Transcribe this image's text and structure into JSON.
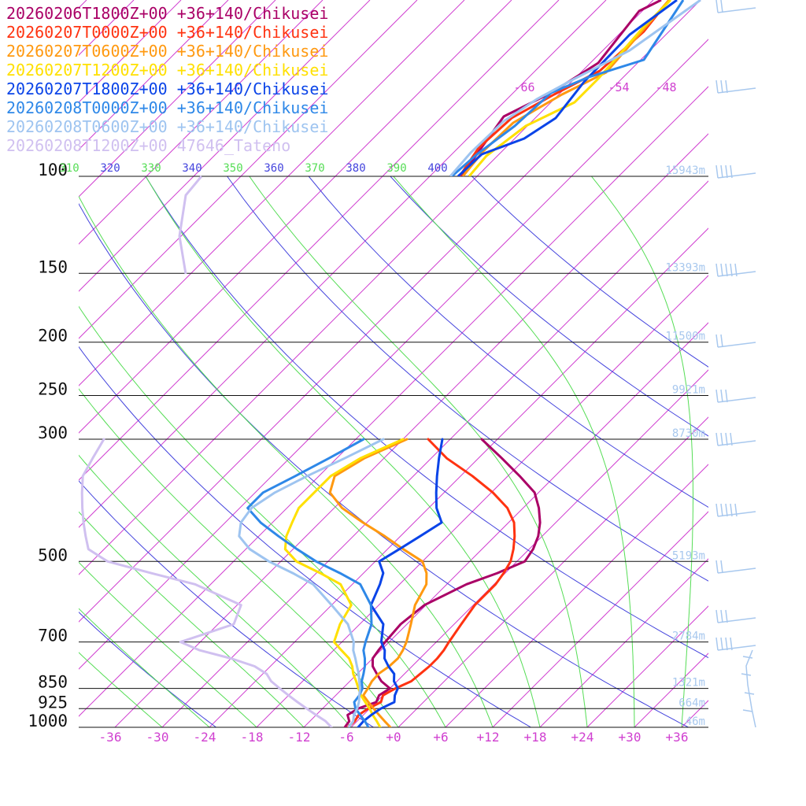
{
  "chart_data": {
    "type": "line",
    "title": "",
    "xlabel": "",
    "ylabel": "",
    "pressure_levels_hpa": [
      100,
      150,
      200,
      250,
      300,
      500,
      700,
      850,
      925,
      1000
    ],
    "pressure_labels": [
      "100",
      "150",
      "200",
      "250",
      "300",
      "500",
      "700",
      "850",
      "925",
      "1000"
    ],
    "temperature_ticks": [
      "-36",
      "-30",
      "-24",
      "-18",
      "-12",
      "-6",
      "+0",
      "+6",
      "+12",
      "+18",
      "+24",
      "+30",
      "+36"
    ],
    "theta_labels": [
      {
        "text": "310",
        "color": "#55dd55"
      },
      {
        "text": "320",
        "color": "#4444dd"
      },
      {
        "text": "330",
        "color": "#55dd55"
      },
      {
        "text": "340",
        "color": "#4444dd"
      },
      {
        "text": "350",
        "color": "#55dd55"
      },
      {
        "text": "360",
        "color": "#4444dd"
      },
      {
        "text": "370",
        "color": "#55dd55"
      },
      {
        "text": "380",
        "color": "#4444dd"
      },
      {
        "text": "390",
        "color": "#55dd55"
      },
      {
        "text": "400",
        "color": "#4444dd"
      }
    ],
    "top_isotherm_labels": [
      "-66",
      "-54",
      "-48"
    ],
    "height_labels": [
      {
        "p": 100,
        "text": "15943m"
      },
      {
        "p": 150,
        "text": "13393m"
      },
      {
        "p": 200,
        "text": "11500m"
      },
      {
        "p": 250,
        "text": "9921m"
      },
      {
        "p": 300,
        "text": "8730m"
      },
      {
        "p": 500,
        "text": "5193m"
      },
      {
        "p": 700,
        "text": "2784m"
      },
      {
        "p": 850,
        "text": "1321m"
      },
      {
        "p": 925,
        "text": "664m"
      },
      {
        "p": 1000,
        "text": "46m"
      }
    ],
    "colors": {
      "isotherm": "#d040d0",
      "isobar": "#111111",
      "dry_adiabat": "#4444dd",
      "moist_adiabat": "#55dd55",
      "wind_barb": "#a8c8ee"
    },
    "series": [
      {
        "name": "20260206T1800Z+00 +36+140/Chikusei",
        "color": "#aa0066",
        "points": [
          [
            1000,
            -6.8
          ],
          [
            975,
            -7.0
          ],
          [
            950,
            -8.0
          ],
          [
            925,
            -7.5
          ],
          [
            900,
            -6.0
          ],
          [
            875,
            -6.5
          ],
          [
            850,
            -6.0
          ],
          [
            825,
            -8.0
          ],
          [
            800,
            -9.5
          ],
          [
            775,
            -11.0
          ],
          [
            750,
            -12.0
          ],
          [
            725,
            -12.3
          ],
          [
            700,
            -12.5
          ],
          [
            650,
            -12.8
          ],
          [
            600,
            -12.2
          ],
          [
            550,
            -9.5
          ],
          [
            525,
            -7.0
          ],
          [
            500,
            -5.0
          ],
          [
            475,
            -5.5
          ],
          [
            450,
            -6.5
          ],
          [
            425,
            -8.0
          ],
          [
            400,
            -10.0
          ],
          [
            375,
            -12.5
          ],
          [
            350,
            -16.5
          ],
          [
            325,
            -21.0
          ],
          [
            300,
            -26.0
          ]
        ]
      },
      {
        "name": "20260207T0000Z+00 +36+140/Chikusei",
        "color": "#ff3311",
        "points": [
          [
            1000,
            -6.4
          ],
          [
            975,
            -6.3
          ],
          [
            950,
            -6.6
          ],
          [
            925,
            -6.2
          ],
          [
            900,
            -5.4
          ],
          [
            875,
            -6.0
          ],
          [
            850,
            -5.3
          ],
          [
            825,
            -4.2
          ],
          [
            800,
            -4.0
          ],
          [
            775,
            -3.8
          ],
          [
            750,
            -3.8
          ],
          [
            725,
            -4.0
          ],
          [
            700,
            -4.4
          ],
          [
            650,
            -5.1
          ],
          [
            600,
            -5.8
          ],
          [
            550,
            -5.8
          ],
          [
            525,
            -6.2
          ],
          [
            500,
            -6.8
          ],
          [
            475,
            -8.0
          ],
          [
            450,
            -9.5
          ],
          [
            425,
            -11.3
          ],
          [
            400,
            -14.0
          ],
          [
            375,
            -17.8
          ],
          [
            350,
            -22.5
          ],
          [
            325,
            -28.0
          ],
          [
            300,
            -32.8
          ]
        ]
      },
      {
        "name": "20260207T0600Z+00 +36+140/Chikusei",
        "color": "#ff9910",
        "points": [
          [
            1000,
            -1.0
          ],
          [
            975,
            -2.5
          ],
          [
            950,
            -4.0
          ],
          [
            925,
            -5.5
          ],
          [
            900,
            -7.0
          ],
          [
            875,
            -8.5
          ],
          [
            850,
            -8.8
          ],
          [
            825,
            -9.2
          ],
          [
            800,
            -9.3
          ],
          [
            775,
            -8.9
          ],
          [
            750,
            -8.8
          ],
          [
            725,
            -9.2
          ],
          [
            700,
            -9.8
          ],
          [
            650,
            -11.5
          ],
          [
            600,
            -13.4
          ],
          [
            550,
            -14.6
          ],
          [
            525,
            -16.0
          ],
          [
            500,
            -18.0
          ],
          [
            475,
            -22.0
          ],
          [
            450,
            -26.0
          ],
          [
            425,
            -30.5
          ],
          [
            400,
            -35.0
          ],
          [
            375,
            -38.5
          ],
          [
            350,
            -40.0
          ],
          [
            325,
            -38.5
          ],
          [
            300,
            -35.5
          ]
        ]
      },
      {
        "name": "20260207T1200Z+00 +36+140/Chikusei",
        "color": "#ffe000",
        "points": [
          [
            1000,
            -2.3
          ],
          [
            975,
            -3.5
          ],
          [
            950,
            -4.8
          ],
          [
            925,
            -6.0
          ],
          [
            900,
            -7.4
          ],
          [
            875,
            -8.8
          ],
          [
            850,
            -10.0
          ],
          [
            825,
            -11.2
          ],
          [
            800,
            -12.5
          ],
          [
            775,
            -13.6
          ],
          [
            750,
            -15.0
          ],
          [
            725,
            -17.0
          ],
          [
            700,
            -19.0
          ],
          [
            650,
            -20.5
          ],
          [
            600,
            -21.5
          ],
          [
            550,
            -25.5
          ],
          [
            525,
            -29.5
          ],
          [
            500,
            -34.0
          ],
          [
            475,
            -37.0
          ],
          [
            450,
            -38.5
          ],
          [
            425,
            -39.5
          ],
          [
            400,
            -40.5
          ],
          [
            375,
            -40.5
          ],
          [
            350,
            -40.5
          ],
          [
            325,
            -39.0
          ],
          [
            300,
            -36.0
          ]
        ]
      },
      {
        "name": "20260207T1800Z+00 +36+140/Chikusei",
        "color": "#0a44e8",
        "points": [
          [
            1000,
            -5.1
          ],
          [
            975,
            -5.2
          ],
          [
            950,
            -5.0
          ],
          [
            925,
            -4.6
          ],
          [
            900,
            -3.7
          ],
          [
            875,
            -4.5
          ],
          [
            850,
            -5.0
          ],
          [
            825,
            -6.4
          ],
          [
            800,
            -7.3
          ],
          [
            775,
            -9.0
          ],
          [
            750,
            -10.5
          ],
          [
            725,
            -11.5
          ],
          [
            700,
            -13.0
          ],
          [
            650,
            -15.0
          ],
          [
            600,
            -19.0
          ],
          [
            550,
            -20.5
          ],
          [
            525,
            -21.5
          ],
          [
            500,
            -23.5
          ],
          [
            475,
            -22.5
          ],
          [
            450,
            -21.5
          ],
          [
            425,
            -20.5
          ],
          [
            400,
            -23.0
          ],
          [
            375,
            -25.0
          ],
          [
            350,
            -27.0
          ],
          [
            325,
            -29.0
          ],
          [
            300,
            -31.0
          ]
        ]
      },
      {
        "name": "20260208T0000Z+00 +36+140/Chikusei",
        "color": "#2e88e8",
        "points": [
          [
            1000,
            -3.8
          ],
          [
            975,
            -5.0
          ],
          [
            950,
            -6.4
          ],
          [
            925,
            -7.8
          ],
          [
            900,
            -8.8
          ],
          [
            875,
            -9.0
          ],
          [
            850,
            -9.5
          ],
          [
            825,
            -10.5
          ],
          [
            800,
            -11.2
          ],
          [
            775,
            -12.0
          ],
          [
            750,
            -13.0
          ],
          [
            725,
            -14.2
          ],
          [
            700,
            -15.0
          ],
          [
            650,
            -16.5
          ],
          [
            600,
            -19.0
          ],
          [
            550,
            -23.0
          ],
          [
            525,
            -27.0
          ],
          [
            500,
            -31.5
          ],
          [
            475,
            -35.5
          ],
          [
            450,
            -39.5
          ],
          [
            425,
            -43.5
          ],
          [
            400,
            -47.0
          ],
          [
            375,
            -47.0
          ],
          [
            350,
            -45.0
          ],
          [
            325,
            -43.0
          ],
          [
            300,
            -41.0
          ]
        ]
      },
      {
        "name": "20260208T0600Z+00 +36+140/Chikusei",
        "color": "#9ec4f0",
        "points": [
          [
            1000,
            -6.3
          ],
          [
            975,
            -6.5
          ],
          [
            950,
            -7.2
          ],
          [
            925,
            -7.6
          ],
          [
            900,
            -8.2
          ],
          [
            875,
            -9.0
          ],
          [
            850,
            -9.8
          ],
          [
            825,
            -10.8
          ],
          [
            800,
            -11.8
          ],
          [
            775,
            -13.0
          ],
          [
            750,
            -14.2
          ],
          [
            725,
            -15.5
          ],
          [
            700,
            -16.5
          ],
          [
            650,
            -19.5
          ],
          [
            600,
            -24.0
          ],
          [
            550,
            -29.0
          ],
          [
            525,
            -33.0
          ],
          [
            500,
            -37.5
          ],
          [
            475,
            -41.5
          ],
          [
            450,
            -44.5
          ],
          [
            425,
            -46.0
          ],
          [
            400,
            -46.5
          ],
          [
            375,
            -45.5
          ],
          [
            350,
            -43.5
          ],
          [
            325,
            -41.0
          ],
          [
            300,
            -38.5
          ]
        ]
      },
      {
        "name": "20260208T1200Z+00 47646_Tateno",
        "color": "#d0c0f0",
        "points": [
          [
            1000,
            -8.5
          ],
          [
            975,
            -10.0
          ],
          [
            950,
            -12.0
          ],
          [
            925,
            -14.0
          ],
          [
            900,
            -16.0
          ],
          [
            875,
            -18.0
          ],
          [
            850,
            -20.0
          ],
          [
            825,
            -22.0
          ],
          [
            800,
            -23.5
          ],
          [
            775,
            -26.0
          ],
          [
            750,
            -30.0
          ],
          [
            725,
            -35.0
          ],
          [
            700,
            -38.5
          ],
          [
            650,
            -34.0
          ],
          [
            600,
            -35.5
          ],
          [
            550,
            -44.0
          ],
          [
            525,
            -51.0
          ],
          [
            500,
            -58.0
          ],
          [
            475,
            -62.0
          ],
          [
            450,
            -64.0
          ],
          [
            425,
            -66.0
          ],
          [
            400,
            -68.0
          ],
          [
            375,
            -70.0
          ],
          [
            350,
            -72.0
          ],
          [
            325,
            -73.0
          ],
          [
            300,
            -74.0
          ]
        ]
      }
    ]
  }
}
